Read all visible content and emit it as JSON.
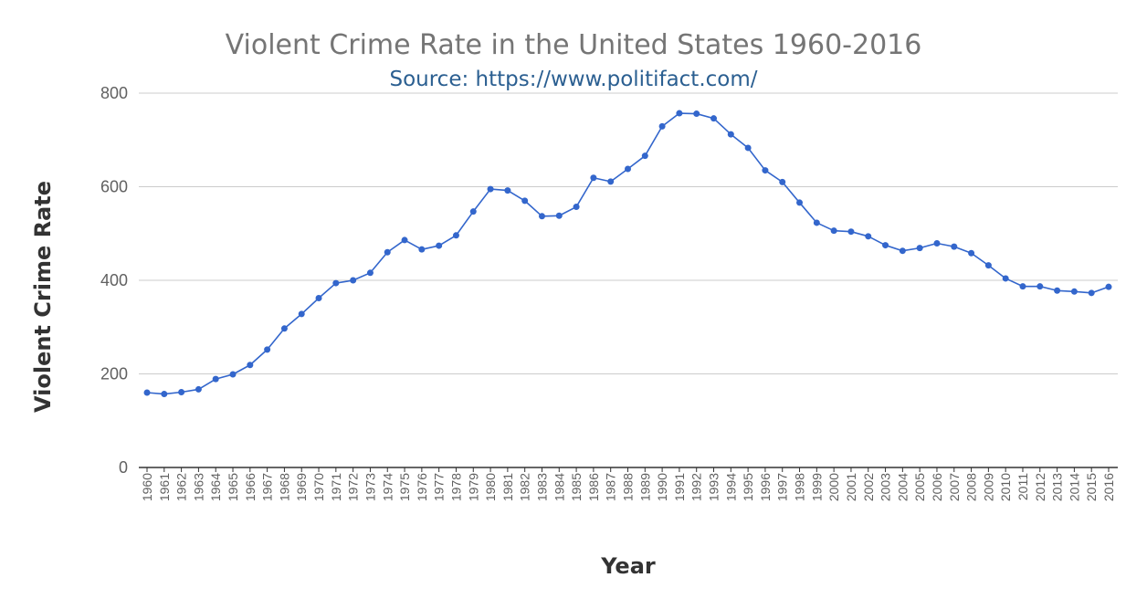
{
  "chart_data": {
    "type": "line",
    "title": "Violent Crime Rate in the United States 1960-2016",
    "subtitle": "Source: https://www.politifact.com/",
    "xlabel": "Year",
    "ylabel": "Violent Crime Rate",
    "ylim": [
      0,
      800
    ],
    "yticks": [
      "0",
      "200",
      "400",
      "600",
      "800"
    ],
    "grid": true,
    "legend": "none",
    "colors": {
      "series": "#3366cc",
      "grid": "#cccccc",
      "baseline": "#333333"
    },
    "categories": [
      "1960",
      "1961",
      "1962",
      "1963",
      "1964",
      "1965",
      "1966",
      "1967",
      "1968",
      "1969",
      "1970",
      "1971",
      "1972",
      "1973",
      "1974",
      "1975",
      "1976",
      "1977",
      "1978",
      "1979",
      "1980",
      "1981",
      "1982",
      "1983",
      "1984",
      "1985",
      "1986",
      "1987",
      "1988",
      "1989",
      "1990",
      "1991",
      "1992",
      "1993",
      "1994",
      "1995",
      "1996",
      "1997",
      "1998",
      "1999",
      "2000",
      "2001",
      "2002",
      "2003",
      "2004",
      "2005",
      "2006",
      "2007",
      "2008",
      "2009",
      "2010",
      "2011",
      "2012",
      "2013",
      "2014",
      "2015",
      "2016"
    ],
    "series": [
      {
        "values": [
          160,
          157,
          161,
          167,
          189,
          199,
          219,
          252,
          297,
          328,
          362,
          394,
          400,
          416,
          460,
          486,
          466,
          474,
          496,
          547,
          595,
          592,
          570,
          537,
          538,
          557,
          619,
          611,
          638,
          666,
          729,
          757,
          756,
          746,
          712,
          683,
          635,
          610,
          566,
          523,
          506,
          504,
          494,
          475,
          463,
          469,
          479,
          472,
          458,
          432,
          404,
          387,
          387,
          378,
          376,
          373,
          386
        ]
      }
    ]
  }
}
